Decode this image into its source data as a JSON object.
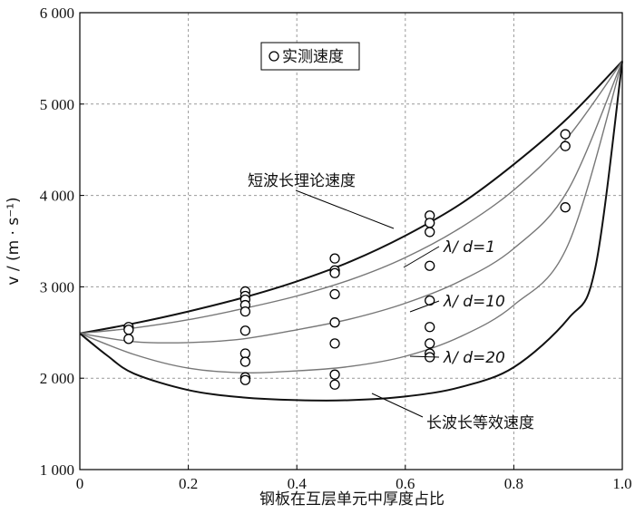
{
  "chart_data": {
    "type": "line",
    "xlabel": "钢板在互层单元中厚度占比",
    "ylabel": "v / (m · s⁻¹)",
    "xlim": [
      0,
      1
    ],
    "ylim": [
      1000,
      6000
    ],
    "xticks": [
      0,
      0.2,
      0.4,
      0.6,
      0.8,
      1
    ],
    "yticks": [
      1000,
      2000,
      3000,
      4000,
      5000,
      6000
    ],
    "xtick_labels": [
      "0",
      "0.2",
      "0.4",
      "0.6",
      "0.8",
      "1.0"
    ],
    "ytick_labels": [
      "1 000",
      "2 000",
      "3 000",
      "4 000",
      "5 000",
      "6 000"
    ],
    "grid": true,
    "legend": {
      "position": "top-left",
      "entries": [
        "实测速度"
      ]
    },
    "series": [
      {
        "name": "短波长理论速度",
        "x": [
          0,
          0.1,
          0.2,
          0.3,
          0.4,
          0.5,
          0.6,
          0.7,
          0.8,
          0.9,
          1.0
        ],
        "y": [
          2490,
          2600,
          2730,
          2880,
          3060,
          3280,
          3560,
          3900,
          4340,
          4850,
          5470
        ],
        "stroke": "#111111",
        "width": 2
      },
      {
        "name": "λ/ d=1",
        "x": [
          0,
          0.1,
          0.2,
          0.3,
          0.4,
          0.5,
          0.6,
          0.7,
          0.8,
          0.9,
          1.0
        ],
        "y": [
          2490,
          2550,
          2640,
          2760,
          2900,
          3080,
          3320,
          3640,
          4060,
          4640,
          5470
        ],
        "stroke": "#777777",
        "width": 1.4
      },
      {
        "name": "λ/ d=10",
        "x": [
          0,
          0.1,
          0.2,
          0.3,
          0.4,
          0.5,
          0.6,
          0.7,
          0.8,
          0.9,
          1.0
        ],
        "y": [
          2490,
          2400,
          2390,
          2430,
          2530,
          2650,
          2820,
          3060,
          3420,
          4060,
          5470
        ],
        "stroke": "#777777",
        "width": 1.4
      },
      {
        "name": "λ/ d=20",
        "x": [
          0,
          0.1,
          0.2,
          0.3,
          0.4,
          0.5,
          0.6,
          0.7,
          0.8,
          0.9,
          1.0
        ],
        "y": [
          2490,
          2260,
          2110,
          2060,
          2080,
          2130,
          2240,
          2450,
          2800,
          3460,
          5470
        ],
        "stroke": "#777777",
        "width": 1.4
      },
      {
        "name": "长波长等效速度",
        "x": [
          0,
          0.05,
          0.1,
          0.2,
          0.3,
          0.4,
          0.5,
          0.6,
          0.7,
          0.8,
          0.9,
          0.95,
          1.0
        ],
        "y": [
          2490,
          2250,
          2050,
          1870,
          1790,
          1760,
          1760,
          1800,
          1900,
          2120,
          2650,
          3200,
          5470
        ],
        "stroke": "#111111",
        "width": 2
      }
    ],
    "measured": {
      "name": "实测速度",
      "points": [
        [
          0.09,
          2560
        ],
        [
          0.09,
          2530
        ],
        [
          0.09,
          2430
        ],
        [
          0.305,
          2950
        ],
        [
          0.305,
          2900
        ],
        [
          0.305,
          2860
        ],
        [
          0.305,
          2800
        ],
        [
          0.305,
          2730
        ],
        [
          0.305,
          2520
        ],
        [
          0.305,
          2270
        ],
        [
          0.305,
          2180
        ],
        [
          0.305,
          2010
        ],
        [
          0.305,
          1980
        ],
        [
          0.47,
          3310
        ],
        [
          0.47,
          3180
        ],
        [
          0.47,
          3150
        ],
        [
          0.47,
          2920
        ],
        [
          0.47,
          2610
        ],
        [
          0.47,
          2380
        ],
        [
          0.47,
          2040
        ],
        [
          0.47,
          1930
        ],
        [
          0.645,
          3780
        ],
        [
          0.645,
          3700
        ],
        [
          0.645,
          3600
        ],
        [
          0.645,
          3230
        ],
        [
          0.645,
          2850
        ],
        [
          0.645,
          2560
        ],
        [
          0.645,
          2380
        ],
        [
          0.645,
          2270
        ],
        [
          0.645,
          2230
        ],
        [
          0.895,
          4670
        ],
        [
          0.895,
          4540
        ],
        [
          0.895,
          3870
        ]
      ]
    },
    "annotations": [
      {
        "text": "短波长理论速度",
        "at": [
          0.64,
          3650
        ],
        "anchor_series": 0
      },
      {
        "text": "λ/ d=1",
        "at": [
          0.85,
          4310
        ],
        "anchor_series": 1
      },
      {
        "text": "λ/ d=10",
        "at": [
          0.85,
          3390
        ],
        "anchor_series": 2
      },
      {
        "text": "λ/ d=20",
        "at": [
          0.85,
          2740
        ],
        "anchor_series": 3
      },
      {
        "text": "长波长等效速度",
        "at": [
          0.53,
          1780
        ],
        "anchor_series": 4
      }
    ]
  }
}
